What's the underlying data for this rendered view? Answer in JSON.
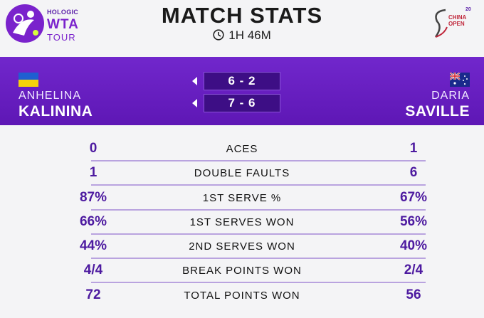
{
  "header": {
    "brand_sponsor": "HOLOGIC",
    "brand_name": "WTA",
    "brand_tour": "TOUR",
    "title": "MATCH STATS",
    "duration": "1H 46M",
    "tournament_logo_text_1": "CHINA",
    "tournament_logo_text_2": "OPEN",
    "tournament_logo_badge": "20"
  },
  "players": {
    "left": {
      "first_name": "ANHELINA",
      "last_name": "KALININA",
      "flag": "ukraine-flag"
    },
    "right": {
      "first_name": "DARIA",
      "last_name": "SAVILLE",
      "flag": "australia-flag"
    }
  },
  "sets": [
    {
      "score": "6 - 2"
    },
    {
      "score": "7 - 6"
    }
  ],
  "stats": [
    {
      "label": "ACES",
      "left": "0",
      "right": "1"
    },
    {
      "label": "DOUBLE FAULTS",
      "left": "1",
      "right": "6"
    },
    {
      "label": "1ST SERVE %",
      "left": "87%",
      "right": "67%"
    },
    {
      "label": "1ST SERVES WON",
      "left": "66%",
      "right": "56%"
    },
    {
      "label": "2ND SERVES WON",
      "left": "44%",
      "right": "40%"
    },
    {
      "label": "BREAK POINTS WON",
      "left": "4/4",
      "right": "2/4"
    },
    {
      "label": "TOTAL POINTS WON",
      "left": "72",
      "right": "56"
    }
  ],
  "colors": {
    "accent": "#6a1fc4",
    "set_box": "#3d0e85",
    "stat_value": "#4d1aa0"
  }
}
